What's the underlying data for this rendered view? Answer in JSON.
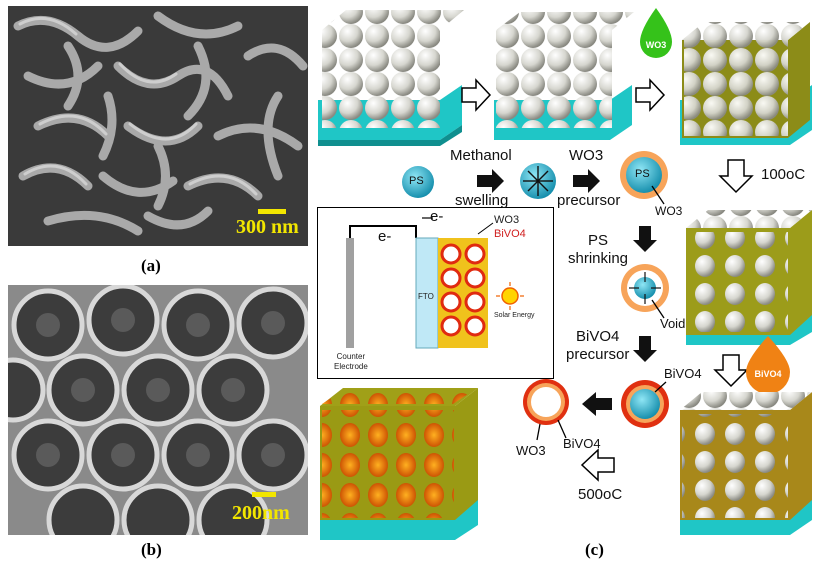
{
  "panel_a": {
    "caption": "(a)",
    "scale": "300 nm"
  },
  "panel_b": {
    "caption": "(b)",
    "scale": "200nm"
  },
  "panel_c": {
    "caption": "(c)",
    "droplets": {
      "wo3": "WO3",
      "bivo4": "BiVO4"
    },
    "temps": {
      "t100": "100oC",
      "t500": "500oC"
    },
    "ps": "PS",
    "methanol": "Methanol",
    "swelling": "swelling",
    "wo3_precursor_1": "WO3",
    "wo3_precursor_2": "precursor",
    "wo3_shell": "WO3",
    "ps_shrinking_1": "PS",
    "ps_shrinking_2": "shrinking",
    "void": "Void",
    "bivo4_precursor_1": "BiVO4",
    "bivo4_precursor_2": "precursor",
    "bivo4_coat": "BiVO4",
    "final_bivo4": "BiVO4",
    "final_wo3": "WO3"
  },
  "inset": {
    "electron_left": "e-",
    "electron_right": "e-",
    "wo3": "WO3",
    "bivo4": "BiVO4",
    "fto": "FTO",
    "solar": "Solar Energy",
    "counter_1": "Counter",
    "counter_2": "Electrode"
  }
}
